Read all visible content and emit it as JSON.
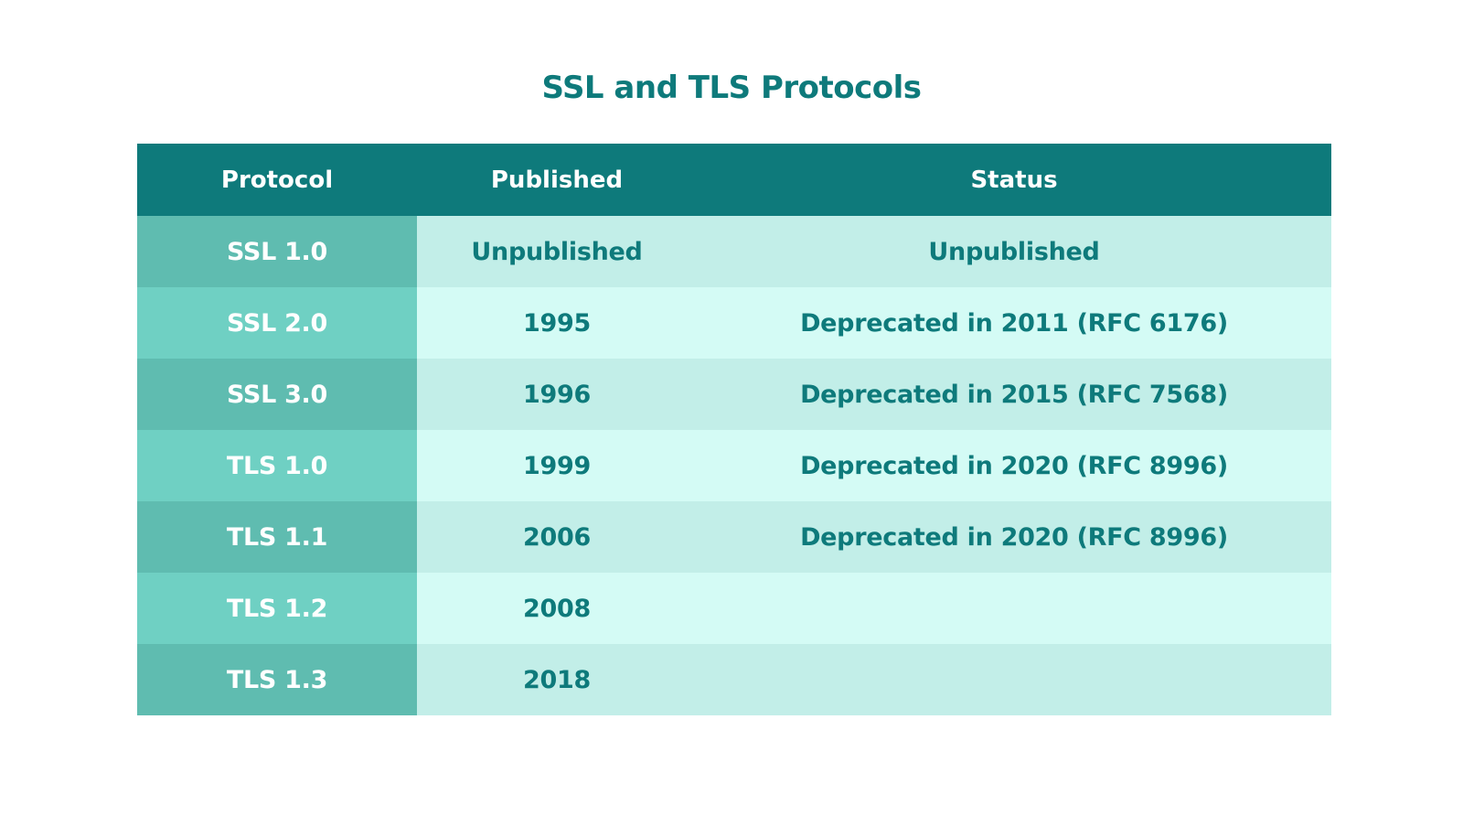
{
  "title": "SSL and TLS Protocols",
  "table": {
    "headers": [
      "Protocol",
      "Published",
      "Status"
    ],
    "rows": [
      {
        "protocol": "SSL 1.0",
        "published": "Unpublished",
        "status": "Unpublished"
      },
      {
        "protocol": "SSL 2.0",
        "published": "1995",
        "status": "Deprecated in 2011 (RFC 6176)"
      },
      {
        "protocol": "SSL 3.0",
        "published": "1996",
        "status": "Deprecated in 2015 (RFC 7568)"
      },
      {
        "protocol": "TLS 1.0",
        "published": "1999",
        "status": "Deprecated in 2020 (RFC 8996)"
      },
      {
        "protocol": "TLS 1.1",
        "published": "2006",
        "status": "Deprecated in 2020 (RFC 8996)"
      },
      {
        "protocol": "TLS 1.2",
        "published": "2008",
        "status": ""
      },
      {
        "protocol": "TLS 1.3",
        "published": "2018",
        "status": ""
      }
    ]
  },
  "colors": {
    "header_bg": "#0e7a7b",
    "text_teal": "#0e7a7b",
    "protocol_cell_dark": "#5fbcb0",
    "protocol_cell_light": "#6fd0c3",
    "data_cell_dark": "#c2eee8",
    "data_cell_light": "#d4fbf5"
  }
}
